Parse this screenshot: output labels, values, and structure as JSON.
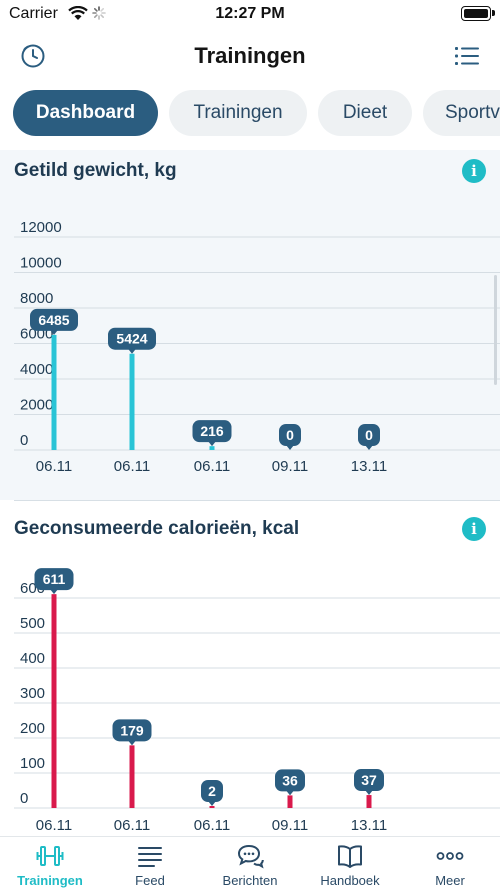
{
  "status_bar": {
    "carrier": "Carrier",
    "time": "12:27 PM"
  },
  "header": {
    "title": "Trainingen",
    "left_icon": "clock-icon",
    "right_icon": "list-icon"
  },
  "tabs": [
    {
      "label": "Dashboard",
      "active": true
    },
    {
      "label": "Trainingen",
      "active": false
    },
    {
      "label": "Dieet",
      "active": false
    },
    {
      "label": "Sportv",
      "active": false
    }
  ],
  "colors": {
    "accent": "#1fbcc6",
    "brand": "#2b5d80",
    "weight_bar": "#29c4d6",
    "calorie_bar": "#d91a4c"
  },
  "cards": [
    {
      "title": "Getild gewicht, kg",
      "info_icon": "info-icon",
      "chart_data": {
        "type": "bar",
        "title": "Getild gewicht, kg",
        "categories": [
          "06.11",
          "06.11",
          "06.11",
          "09.11",
          "13.11"
        ],
        "values": [
          6485,
          5424,
          216,
          0,
          0
        ],
        "value_labels": [
          "6485",
          "5424",
          "216",
          "0",
          "0"
        ],
        "y_ticks": [
          "0",
          "2000",
          "4000",
          "6000",
          "8000",
          "10000",
          "12000"
        ],
        "ylim": [
          0,
          12000
        ],
        "grid": true
      }
    },
    {
      "title": "Geconsumeerde calorieën, kcal",
      "info_icon": "info-icon",
      "chart_data": {
        "type": "bar",
        "title": "Geconsumeerde calorieën, kcal",
        "categories": [
          "06.11",
          "06.11",
          "06.11",
          "09.11",
          "13.11"
        ],
        "values": [
          611,
          179,
          2,
          36,
          37
        ],
        "value_labels": [
          "611",
          "179",
          "2",
          "36",
          "37"
        ],
        "y_ticks": [
          "0",
          "100",
          "200",
          "300",
          "400",
          "500",
          "600"
        ],
        "ylim": [
          0,
          600
        ],
        "grid": true
      }
    }
  ],
  "tabbar": [
    {
      "label": "Trainingen",
      "icon": "dumbbell-icon",
      "active": true
    },
    {
      "label": "Feed",
      "icon": "feed-icon",
      "active": false
    },
    {
      "label": "Berichten",
      "icon": "chat-icon",
      "active": false
    },
    {
      "label": "Handboek",
      "icon": "book-icon",
      "active": false
    },
    {
      "label": "Meer",
      "icon": "more-icon",
      "active": false
    }
  ]
}
